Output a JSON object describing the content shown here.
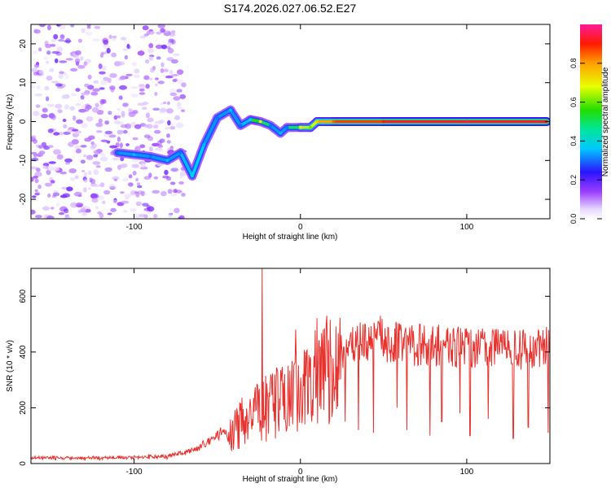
{
  "title": "S174.2026.027.06.52.E27",
  "colors": {
    "axis": "#000000",
    "snr_line": "#e8302c",
    "background": "#ffffff"
  },
  "chart_data": [
    {
      "type": "heatmap",
      "title": "S174.2026.027.06.52.E27",
      "xlabel": "Height of straight line (km)",
      "ylabel": "Frequency (Hz)",
      "xlim": [
        -162,
        150
      ],
      "ylim": [
        -25,
        25
      ],
      "x_ticks": [
        -100,
        0,
        100
      ],
      "x_tick_labels": [
        "-100",
        "0",
        "100"
      ],
      "y_ticks": [
        -20,
        -10,
        0,
        10,
        20
      ],
      "y_tick_labels": [
        "-20",
        "-10",
        "0",
        "10",
        "20"
      ],
      "colorbar": {
        "label": "Normalized spectral amplitude",
        "range": [
          0,
          1
        ],
        "ticks": [
          0,
          0.2,
          0.4,
          0.6,
          0.8
        ],
        "tick_labels": [
          "0.0",
          "0.2",
          "0.4",
          "0.6",
          "0.8"
        ],
        "colormap": "rainbow (white, purple, blue, cyan, green, yellow, orange, red, magenta)"
      },
      "trace": {
        "description": "dominant frequency ridge vs height",
        "x": [
          -110,
          -100,
          -90,
          -80,
          -72,
          -65,
          -58,
          -50,
          -42,
          -36,
          -30,
          -24,
          -18,
          -12,
          -8,
          0,
          6,
          10,
          20,
          50,
          100,
          148
        ],
        "y": [
          -8,
          -8.5,
          -9,
          -10,
          -8,
          -14,
          -6,
          1,
          3,
          -1,
          0.5,
          0,
          -1,
          -3,
          -1.5,
          -1.5,
          -1.5,
          0,
          0,
          0,
          0,
          0
        ],
        "amplitude": [
          0.3,
          0.35,
          0.3,
          0.35,
          0.3,
          0.4,
          0.35,
          0.3,
          0.35,
          0.3,
          0.4,
          0.7,
          0.3,
          0.35,
          0.3,
          0.7,
          0.6,
          0.75,
          0.85,
          0.9,
          0.95,
          0.9
        ]
      },
      "background_noise": {
        "region_x": [
          -162,
          -70
        ],
        "amplitude_range": [
          0.0,
          0.15
        ]
      }
    },
    {
      "type": "line",
      "xlabel": "Height of straight line (km)",
      "ylabel": "SNR (10 * v/v)",
      "xlim": [
        -162,
        150
      ],
      "ylim": [
        0,
        700
      ],
      "x_ticks": [
        -100,
        0,
        100
      ],
      "x_tick_labels": [
        "-100",
        "0",
        "100"
      ],
      "y_ticks": [
        0,
        200,
        400,
        600
      ],
      "y_tick_labels": [
        "0",
        "200",
        "400",
        "600"
      ],
      "series": [
        {
          "name": "SNR",
          "color": "#e8302c",
          "envelope_x": [
            -162,
            -120,
            -80,
            -65,
            -50,
            -40,
            -30,
            -20,
            -10,
            0,
            10,
            20,
            30,
            40,
            50,
            60,
            80,
            100,
            120,
            150
          ],
          "envelope_y": [
            20,
            20,
            25,
            45,
            100,
            140,
            200,
            230,
            260,
            300,
            380,
            400,
            420,
            430,
            440,
            430,
            420,
            415,
            410,
            410
          ],
          "spikes": [
            {
              "x": -23,
              "y": 700
            },
            {
              "x": -3,
              "y": 480
            },
            {
              "x": 48,
              "y": 530
            },
            {
              "x": 72,
              "y": 500
            },
            {
              "x": 148,
              "y": 490
            }
          ],
          "dropouts": [
            {
              "x": 20,
              "y": 300
            },
            {
              "x": 27,
              "y": 150
            },
            {
              "x": 35,
              "y": 120
            },
            {
              "x": 44,
              "y": 110
            },
            {
              "x": 58,
              "y": 200
            },
            {
              "x": 64,
              "y": 120
            },
            {
              "x": 78,
              "y": 100
            },
            {
              "x": 85,
              "y": 150
            },
            {
              "x": 96,
              "y": 180
            },
            {
              "x": 102,
              "y": 100
            },
            {
              "x": 113,
              "y": 160
            },
            {
              "x": 128,
              "y": 90
            },
            {
              "x": 137,
              "y": 130
            },
            {
              "x": 149,
              "y": 110
            }
          ]
        }
      ]
    }
  ]
}
